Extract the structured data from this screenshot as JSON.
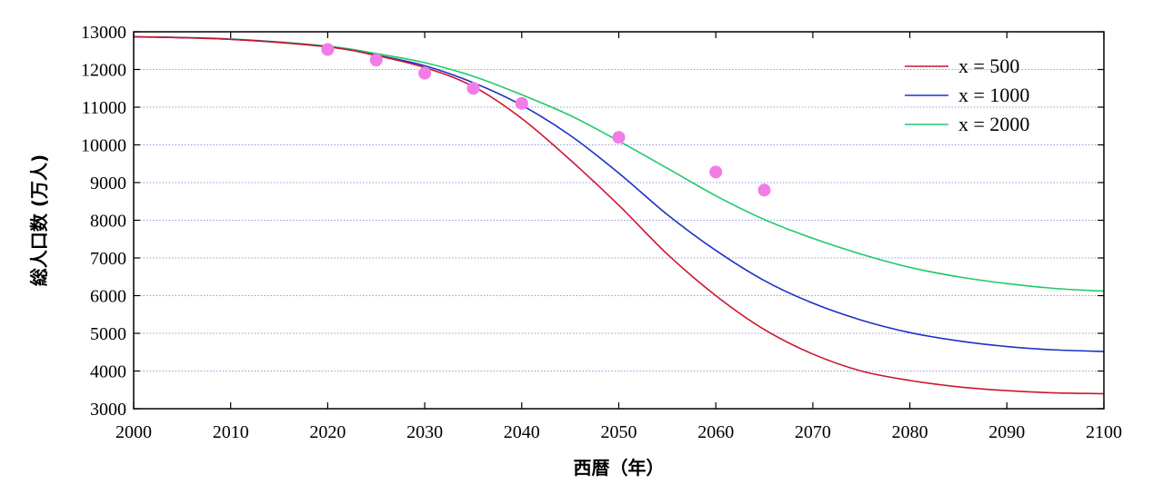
{
  "chart_data": {
    "type": "line",
    "xlabel": "西暦（年）",
    "ylabel": "総人口数 (万人)",
    "xlim": [
      2000,
      2100
    ],
    "ylim": [
      3000,
      13000
    ],
    "xticks": [
      2000,
      2010,
      2020,
      2030,
      2040,
      2050,
      2060,
      2070,
      2080,
      2090,
      2100
    ],
    "yticks": [
      3000,
      4000,
      5000,
      6000,
      7000,
      8000,
      9000,
      10000,
      11000,
      12000,
      13000
    ],
    "grid": "horizontal dotted",
    "legend_position": "top-right",
    "series": [
      {
        "name": "x = 500",
        "color": "#d0142e",
        "x": [
          2000,
          2010,
          2020,
          2025,
          2030,
          2035,
          2040,
          2045,
          2050,
          2055,
          2060,
          2065,
          2070,
          2075,
          2080,
          2085,
          2090,
          2095,
          2100
        ],
        "values": [
          12870,
          12800,
          12600,
          12370,
          12050,
          11550,
          10700,
          9600,
          8400,
          7100,
          6000,
          5100,
          4450,
          4000,
          3750,
          3580,
          3480,
          3420,
          3400
        ]
      },
      {
        "name": "x = 1000",
        "color": "#1a33c4",
        "x": [
          2000,
          2010,
          2020,
          2025,
          2030,
          2035,
          2040,
          2045,
          2050,
          2055,
          2060,
          2065,
          2070,
          2075,
          2080,
          2085,
          2090,
          2095,
          2100
        ],
        "values": [
          12870,
          12800,
          12600,
          12380,
          12100,
          11650,
          11050,
          10250,
          9250,
          8150,
          7200,
          6400,
          5800,
          5350,
          5020,
          4800,
          4650,
          4560,
          4520
        ]
      },
      {
        "name": "x = 2000",
        "color": "#1ec96b",
        "x": [
          2000,
          2010,
          2020,
          2025,
          2030,
          2035,
          2040,
          2045,
          2050,
          2055,
          2060,
          2065,
          2070,
          2075,
          2080,
          2085,
          2090,
          2095,
          2100
        ],
        "values": [
          12870,
          12810,
          12620,
          12420,
          12180,
          11820,
          11330,
          10780,
          10100,
          9380,
          8650,
          8020,
          7520,
          7100,
          6750,
          6500,
          6320,
          6190,
          6120
        ]
      }
    ],
    "points": {
      "color": "#f27ce6",
      "x": [
        2020,
        2025,
        2030,
        2035,
        2040,
        2050,
        2060,
        2065
      ],
      "values": [
        12530,
        12250,
        11900,
        11500,
        11100,
        10200,
        9280,
        8800
      ]
    }
  }
}
